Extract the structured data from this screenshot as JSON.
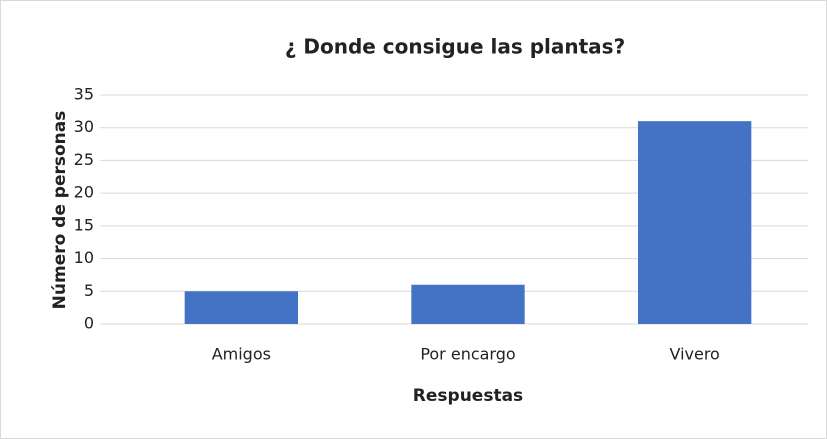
{
  "chart_data": {
    "type": "bar",
    "title": "¿ Donde consigue las plantas?",
    "x_label": "Respuestas",
    "y_label": "Número de personas",
    "categories": [
      "Amigos",
      "Por encargo",
      "Vivero"
    ],
    "values": [
      5,
      6,
      31
    ],
    "color": "#4472c4",
    "ylim": [
      0,
      35
    ],
    "yticks": [
      0,
      5,
      10,
      15,
      20,
      25,
      30,
      35
    ],
    "grid": true
  }
}
